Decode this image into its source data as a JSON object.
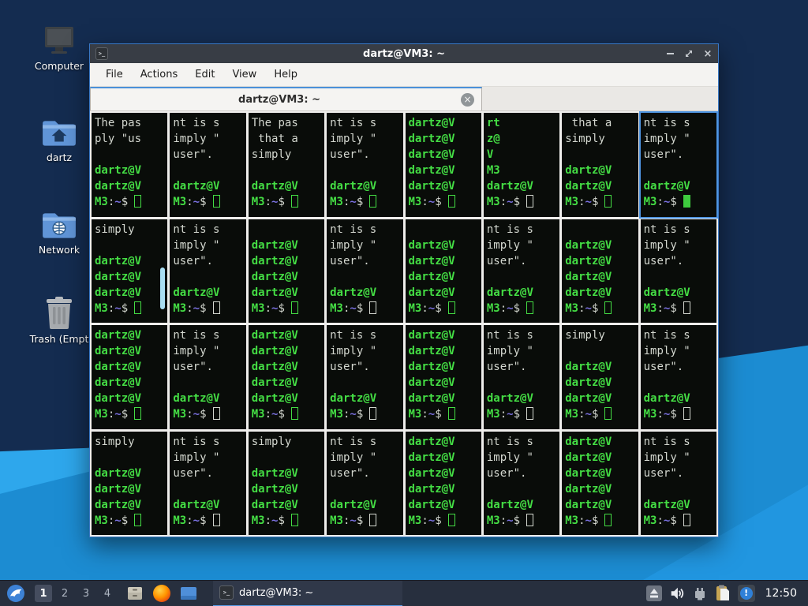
{
  "desktop": {
    "icons": [
      {
        "label": "Computer"
      },
      {
        "label": "dartz"
      },
      {
        "label": "Network"
      },
      {
        "label": "Trash (Empt"
      }
    ]
  },
  "window": {
    "title": "dartz@VM3: ~",
    "menu": [
      "File",
      "Actions",
      "Edit",
      "View",
      "Help"
    ],
    "tab_title": "dartz@VM3: ~"
  },
  "icons": {
    "terminal_glyph": ">_",
    "close_glyph": "×",
    "tab_close_glyph": "×",
    "info_glyph": "!"
  },
  "terminal": {
    "prompt": {
      "host": "M3",
      "colon": ":",
      "path": "~",
      "dollar": "$"
    },
    "blocks": {
      "A": [
        [
          "The pas",
          "w"
        ],
        [
          "ply \"us",
          "w"
        ],
        [
          "",
          ""
        ],
        [
          "dartz@V",
          "g"
        ],
        [
          "dartz@V",
          "g"
        ]
      ],
      "B": [
        [
          "nt is s",
          "w"
        ],
        [
          "imply \"",
          "w"
        ],
        [
          "user\".",
          "w"
        ],
        [
          "",
          ""
        ],
        [
          "dartz@V",
          "g"
        ]
      ],
      "C": [
        [
          "The pas",
          "w"
        ],
        [
          " that a",
          "w"
        ],
        [
          "simply",
          "w"
        ],
        [
          "",
          ""
        ],
        [
          "dartz@V",
          "g"
        ]
      ],
      "D": [
        [
          "dartz@V",
          "g"
        ],
        [
          "dartz@V",
          "g"
        ],
        [
          "dartz@V",
          "g"
        ],
        [
          "dartz@V",
          "g"
        ],
        [
          "dartz@V",
          "g"
        ]
      ],
      "E": [
        [
          "rt",
          "g"
        ],
        [
          "z@",
          "g"
        ],
        [
          "V",
          "g"
        ],
        [
          "M3",
          "g"
        ],
        [
          "dartz@V",
          "g"
        ]
      ],
      "F": [
        [
          " that a",
          "w"
        ],
        [
          "simply",
          "w"
        ],
        [
          "",
          ""
        ],
        [
          "dartz@V",
          "g"
        ],
        [
          "dartz@V",
          "g"
        ]
      ],
      "G": [
        [
          "simply",
          "w"
        ],
        [
          "",
          ""
        ],
        [
          "dartz@V",
          "g"
        ],
        [
          "dartz@V",
          "g"
        ],
        [
          "dartz@V",
          "g"
        ]
      ],
      "H": [
        [
          "",
          ""
        ],
        [
          "dartz@V",
          "g"
        ],
        [
          "dartz@V",
          "g"
        ],
        [
          "dartz@V",
          "g"
        ],
        [
          "dartz@V",
          "g"
        ]
      ]
    },
    "panes": [
      {
        "block": "A",
        "cursor": "go"
      },
      {
        "block": "B",
        "cursor": "go"
      },
      {
        "block": "C",
        "cursor": "go"
      },
      {
        "block": "B",
        "cursor": "go"
      },
      {
        "block": "D",
        "cursor": "go"
      },
      {
        "block": "E",
        "cursor": "wo"
      },
      {
        "block": "F",
        "cursor": "go"
      },
      {
        "block": "B",
        "cursor": "gf",
        "active": true
      },
      {
        "block": "G",
        "cursor": "go",
        "scrollbar": true
      },
      {
        "block": "B",
        "cursor": "wo"
      },
      {
        "block": "H",
        "cursor": "go"
      },
      {
        "block": "B",
        "cursor": "wo"
      },
      {
        "block": "H",
        "cursor": "go"
      },
      {
        "block": "B",
        "cursor": "go"
      },
      {
        "block": "H",
        "cursor": "go"
      },
      {
        "block": "B",
        "cursor": "wo"
      },
      {
        "block": "D",
        "cursor": "go"
      },
      {
        "block": "B",
        "cursor": "wo"
      },
      {
        "block": "D",
        "cursor": "go"
      },
      {
        "block": "B",
        "cursor": "wo"
      },
      {
        "block": "D",
        "cursor": "go"
      },
      {
        "block": "B",
        "cursor": "wo"
      },
      {
        "block": "G",
        "cursor": "go"
      },
      {
        "block": "B",
        "cursor": "wo"
      },
      {
        "block": "G",
        "cursor": "go"
      },
      {
        "block": "B",
        "cursor": "wo"
      },
      {
        "block": "G",
        "cursor": "go"
      },
      {
        "block": "B",
        "cursor": "wo"
      },
      {
        "block": "D",
        "cursor": "go"
      },
      {
        "block": "B",
        "cursor": "wo"
      },
      {
        "block": "D",
        "cursor": "go"
      },
      {
        "block": "B",
        "cursor": "wo"
      }
    ]
  },
  "taskbar": {
    "workspaces": [
      "1",
      "2",
      "3",
      "4"
    ],
    "active_workspace": "1",
    "task_button": "dartz@VM3: ~",
    "clock": "12:50"
  },
  "colors": {
    "accent_blue": "#4a90d9",
    "terminal_green": "#44dd44",
    "terminal_grey": "#d3d7cf",
    "terminal_path_blue": "#7a70e0",
    "wallpaper_navy": "#142c50",
    "wallpaper_blue": "#1c8cd2"
  }
}
